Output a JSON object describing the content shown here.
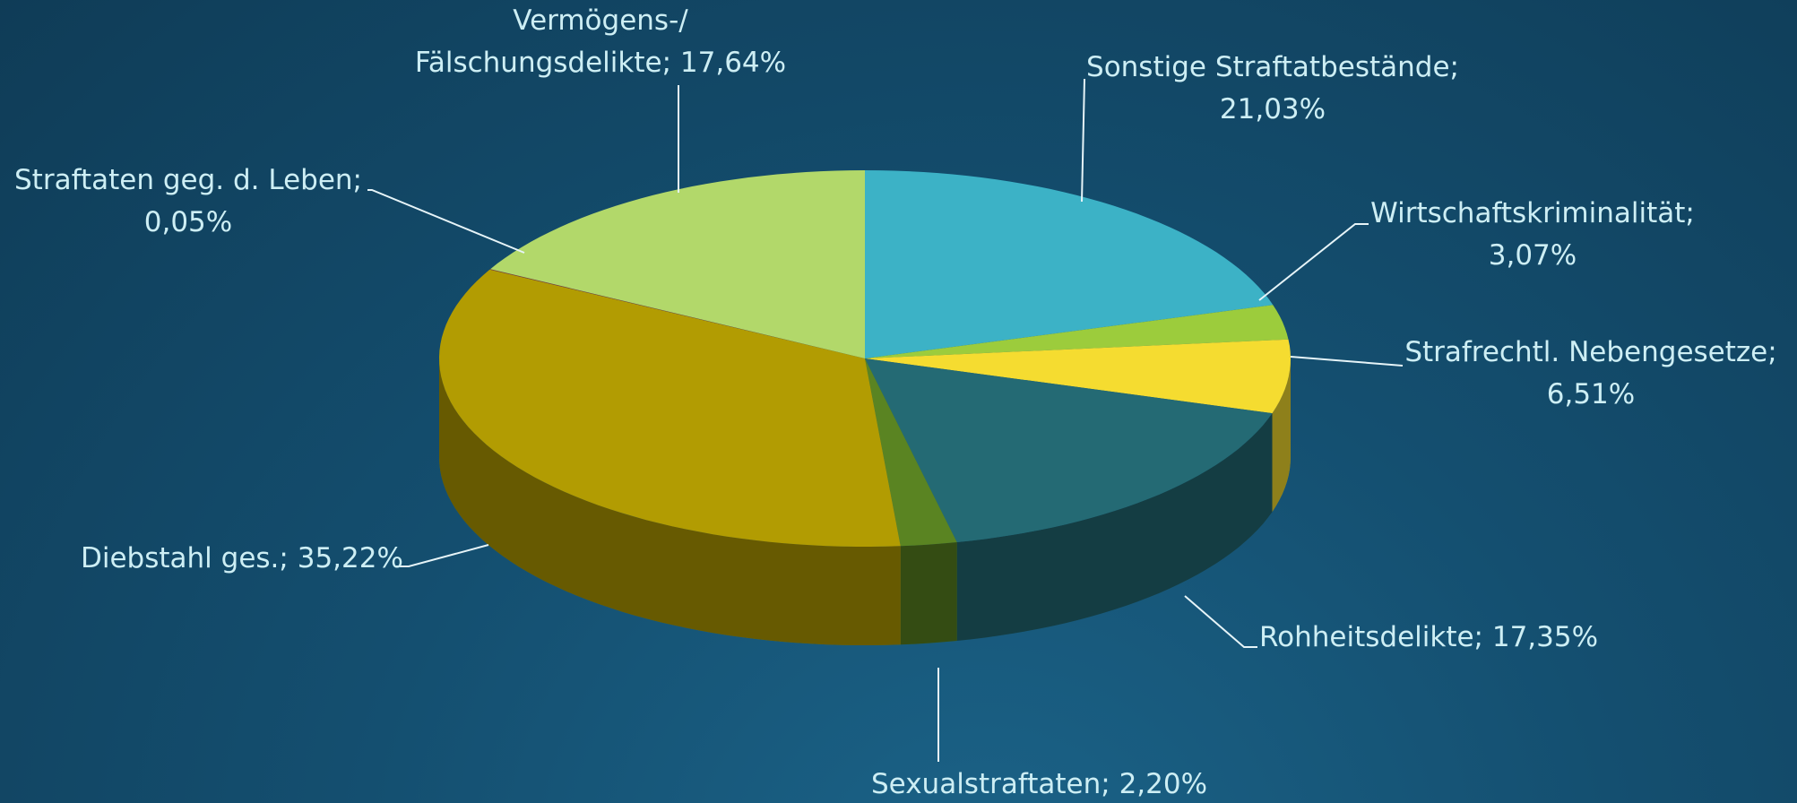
{
  "chart_data": {
    "type": "pie",
    "categories": [
      "Sonstige Straftatbestände;",
      "Wirtschaftskriminalität;",
      "Strafrechtl. Nebengesetze;",
      "Rohheitsdelikte;",
      "Sexualstraftaten;",
      "Diebstahl ges.;",
      "Straftaten geg. d. Leben;",
      "Vermögens-/ Fälschungsdelikte;"
    ],
    "values": [
      21.03,
      3.07,
      6.51,
      17.35,
      2.2,
      35.22,
      0.05,
      17.64
    ],
    "value_labels": [
      "21,03%",
      "3,07%",
      "6,51%",
      "17,35%",
      "2,20%",
      "35,22%",
      "0,05%",
      "17,64%"
    ],
    "colors": [
      "#3cb2c6",
      "#9ccc3c",
      "#f5dc30",
      "#246a74",
      "#5a8422",
      "#b29c02",
      "#8a3a3a",
      "#b2d86a"
    ]
  }
}
